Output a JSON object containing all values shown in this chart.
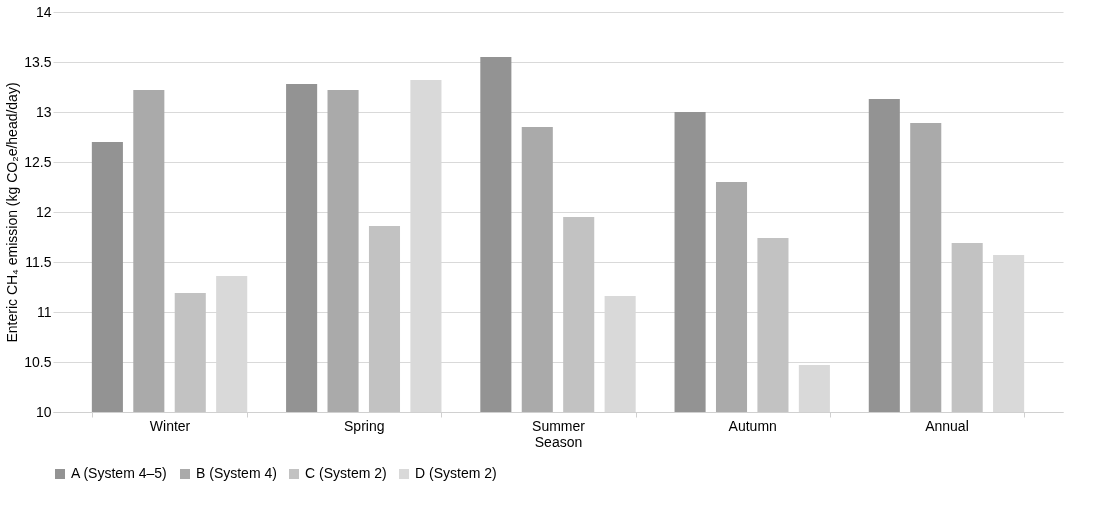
{
  "chart_data": {
    "type": "bar",
    "xlabel": "Season",
    "ylabel": "Enteric CH₄ emission (kg CO₂e/head/day)",
    "categories": [
      "Winter",
      "Spring",
      "Summer",
      "Autumn",
      "Annual"
    ],
    "series": [
      {
        "name": "A (System 4–5)",
        "color": "#939393",
        "values": [
          12.7,
          13.28,
          13.55,
          13.0,
          13.13
        ]
      },
      {
        "name": "B (System 4)",
        "color": "#aaaaaa",
        "values": [
          13.22,
          13.22,
          12.85,
          12.3,
          12.89
        ]
      },
      {
        "name": "C (System 2)",
        "color": "#c2c2c2",
        "values": [
          11.19,
          11.86,
          11.95,
          11.74,
          11.69
        ]
      },
      {
        "name": "D (System 2)",
        "color": "#d9d9d9",
        "values": [
          11.36,
          13.32,
          11.16,
          10.47,
          11.57
        ]
      }
    ],
    "ylim": [
      10,
      14
    ],
    "yticks": [
      10,
      10.5,
      11,
      11.5,
      12,
      12.5,
      13,
      13.5,
      14
    ],
    "grid": "y",
    "legend": "bottom"
  }
}
